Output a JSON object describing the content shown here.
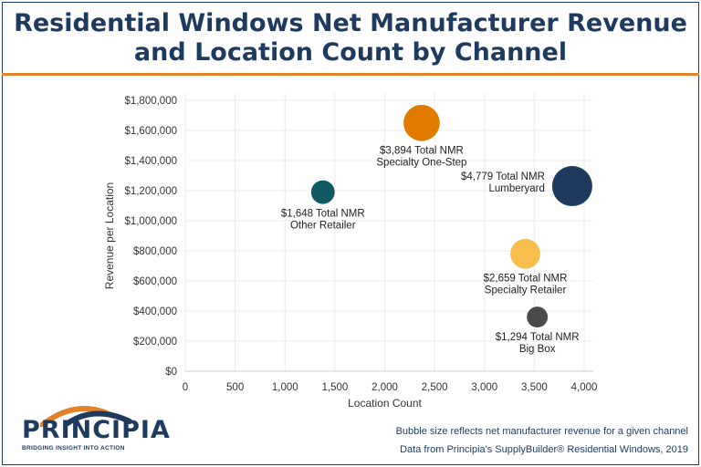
{
  "title_line1": "Residential Windows Net Manufacturer Revenue",
  "title_line2": "and Location Count by Channel",
  "chart_data": {
    "type": "scatter",
    "xlabel": "Location Count",
    "ylabel": "Revenue per Location",
    "xlim": [
      0,
      4000
    ],
    "ylim": [
      0,
      1800000
    ],
    "x_ticks": [
      0,
      500,
      1000,
      1500,
      2000,
      2500,
      3000,
      3500,
      4000
    ],
    "x_tick_labels": [
      "0",
      "500",
      "1,000",
      "1,500",
      "2,000",
      "2,500",
      "3,000",
      "3,500",
      "4,000"
    ],
    "y_ticks": [
      0,
      200000,
      400000,
      600000,
      800000,
      1000000,
      1200000,
      1400000,
      1600000,
      1800000
    ],
    "y_tick_labels": [
      "$0",
      "$200,000",
      "$400,000",
      "$600,000",
      "$800,000",
      "$1,000,000",
      "$1,200,000",
      "$1,400,000",
      "$1,600,000",
      "$1,800,000"
    ],
    "grid": true,
    "points": [
      {
        "name": "Specialty One-Step",
        "total": "$3,894 Total NMR",
        "x": 2370,
        "y": 1650000,
        "nmr": 3894,
        "color": "#e07b00",
        "label_pos": "below"
      },
      {
        "name": "Lumberyard",
        "total": "$4,779 Total NMR",
        "x": 3880,
        "y": 1230000,
        "nmr": 4779,
        "color": "#1f3a5f",
        "label_pos": "left"
      },
      {
        "name": "Other Retailer",
        "total": "$1,648 Total NMR",
        "x": 1380,
        "y": 1190000,
        "nmr": 1648,
        "color": "#0f5a63",
        "label_pos": "below"
      },
      {
        "name": "Specialty Retailer",
        "total": "$2,659 Total NMR",
        "x": 3410,
        "y": 780000,
        "nmr": 2659,
        "color": "#f8be4e",
        "label_pos": "below"
      },
      {
        "name": "Big Box",
        "total": "$1,294 Total NMR",
        "x": 3530,
        "y": 360000,
        "nmr": 1294,
        "color": "#4a4a4a",
        "label_pos": "below"
      }
    ]
  },
  "footer": {
    "logo": "PRINCIPIA",
    "tagline": "BRIDGING INSIGHT INTO ACTION",
    "note1": "Bubble size reflects net manufacturer  revenue for a given channel",
    "note2": "Data from Principia's SupplyBuilder® Residential Windows, 2019"
  }
}
